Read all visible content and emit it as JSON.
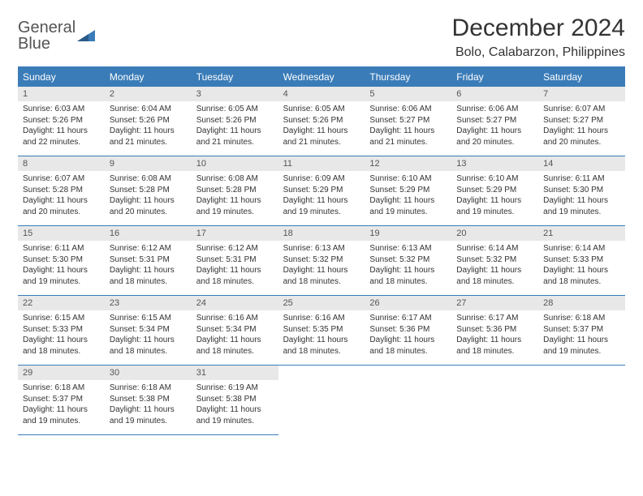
{
  "brand": {
    "line1": "General",
    "line2": "Blue"
  },
  "title": "December 2024",
  "location": "Bolo, Calabarzon, Philippines",
  "colors": {
    "header_bg": "#3a7cb8",
    "header_text": "#ffffff",
    "date_bg": "#e8e8e8",
    "border": "#3a7cb8",
    "text": "#333333"
  },
  "day_headers": [
    "Sunday",
    "Monday",
    "Tuesday",
    "Wednesday",
    "Thursday",
    "Friday",
    "Saturday"
  ],
  "weeks": [
    [
      {
        "d": "1",
        "sr": "Sunrise: 6:03 AM",
        "ss": "Sunset: 5:26 PM",
        "dl1": "Daylight: 11 hours",
        "dl2": "and 22 minutes."
      },
      {
        "d": "2",
        "sr": "Sunrise: 6:04 AM",
        "ss": "Sunset: 5:26 PM",
        "dl1": "Daylight: 11 hours",
        "dl2": "and 21 minutes."
      },
      {
        "d": "3",
        "sr": "Sunrise: 6:05 AM",
        "ss": "Sunset: 5:26 PM",
        "dl1": "Daylight: 11 hours",
        "dl2": "and 21 minutes."
      },
      {
        "d": "4",
        "sr": "Sunrise: 6:05 AM",
        "ss": "Sunset: 5:26 PM",
        "dl1": "Daylight: 11 hours",
        "dl2": "and 21 minutes."
      },
      {
        "d": "5",
        "sr": "Sunrise: 6:06 AM",
        "ss": "Sunset: 5:27 PM",
        "dl1": "Daylight: 11 hours",
        "dl2": "and 21 minutes."
      },
      {
        "d": "6",
        "sr": "Sunrise: 6:06 AM",
        "ss": "Sunset: 5:27 PM",
        "dl1": "Daylight: 11 hours",
        "dl2": "and 20 minutes."
      },
      {
        "d": "7",
        "sr": "Sunrise: 6:07 AM",
        "ss": "Sunset: 5:27 PM",
        "dl1": "Daylight: 11 hours",
        "dl2": "and 20 minutes."
      }
    ],
    [
      {
        "d": "8",
        "sr": "Sunrise: 6:07 AM",
        "ss": "Sunset: 5:28 PM",
        "dl1": "Daylight: 11 hours",
        "dl2": "and 20 minutes."
      },
      {
        "d": "9",
        "sr": "Sunrise: 6:08 AM",
        "ss": "Sunset: 5:28 PM",
        "dl1": "Daylight: 11 hours",
        "dl2": "and 20 minutes."
      },
      {
        "d": "10",
        "sr": "Sunrise: 6:08 AM",
        "ss": "Sunset: 5:28 PM",
        "dl1": "Daylight: 11 hours",
        "dl2": "and 19 minutes."
      },
      {
        "d": "11",
        "sr": "Sunrise: 6:09 AM",
        "ss": "Sunset: 5:29 PM",
        "dl1": "Daylight: 11 hours",
        "dl2": "and 19 minutes."
      },
      {
        "d": "12",
        "sr": "Sunrise: 6:10 AM",
        "ss": "Sunset: 5:29 PM",
        "dl1": "Daylight: 11 hours",
        "dl2": "and 19 minutes."
      },
      {
        "d": "13",
        "sr": "Sunrise: 6:10 AM",
        "ss": "Sunset: 5:29 PM",
        "dl1": "Daylight: 11 hours",
        "dl2": "and 19 minutes."
      },
      {
        "d": "14",
        "sr": "Sunrise: 6:11 AM",
        "ss": "Sunset: 5:30 PM",
        "dl1": "Daylight: 11 hours",
        "dl2": "and 19 minutes."
      }
    ],
    [
      {
        "d": "15",
        "sr": "Sunrise: 6:11 AM",
        "ss": "Sunset: 5:30 PM",
        "dl1": "Daylight: 11 hours",
        "dl2": "and 19 minutes."
      },
      {
        "d": "16",
        "sr": "Sunrise: 6:12 AM",
        "ss": "Sunset: 5:31 PM",
        "dl1": "Daylight: 11 hours",
        "dl2": "and 18 minutes."
      },
      {
        "d": "17",
        "sr": "Sunrise: 6:12 AM",
        "ss": "Sunset: 5:31 PM",
        "dl1": "Daylight: 11 hours",
        "dl2": "and 18 minutes."
      },
      {
        "d": "18",
        "sr": "Sunrise: 6:13 AM",
        "ss": "Sunset: 5:32 PM",
        "dl1": "Daylight: 11 hours",
        "dl2": "and 18 minutes."
      },
      {
        "d": "19",
        "sr": "Sunrise: 6:13 AM",
        "ss": "Sunset: 5:32 PM",
        "dl1": "Daylight: 11 hours",
        "dl2": "and 18 minutes."
      },
      {
        "d": "20",
        "sr": "Sunrise: 6:14 AM",
        "ss": "Sunset: 5:32 PM",
        "dl1": "Daylight: 11 hours",
        "dl2": "and 18 minutes."
      },
      {
        "d": "21",
        "sr": "Sunrise: 6:14 AM",
        "ss": "Sunset: 5:33 PM",
        "dl1": "Daylight: 11 hours",
        "dl2": "and 18 minutes."
      }
    ],
    [
      {
        "d": "22",
        "sr": "Sunrise: 6:15 AM",
        "ss": "Sunset: 5:33 PM",
        "dl1": "Daylight: 11 hours",
        "dl2": "and 18 minutes."
      },
      {
        "d": "23",
        "sr": "Sunrise: 6:15 AM",
        "ss": "Sunset: 5:34 PM",
        "dl1": "Daylight: 11 hours",
        "dl2": "and 18 minutes."
      },
      {
        "d": "24",
        "sr": "Sunrise: 6:16 AM",
        "ss": "Sunset: 5:34 PM",
        "dl1": "Daylight: 11 hours",
        "dl2": "and 18 minutes."
      },
      {
        "d": "25",
        "sr": "Sunrise: 6:16 AM",
        "ss": "Sunset: 5:35 PM",
        "dl1": "Daylight: 11 hours",
        "dl2": "and 18 minutes."
      },
      {
        "d": "26",
        "sr": "Sunrise: 6:17 AM",
        "ss": "Sunset: 5:36 PM",
        "dl1": "Daylight: 11 hours",
        "dl2": "and 18 minutes."
      },
      {
        "d": "27",
        "sr": "Sunrise: 6:17 AM",
        "ss": "Sunset: 5:36 PM",
        "dl1": "Daylight: 11 hours",
        "dl2": "and 18 minutes."
      },
      {
        "d": "28",
        "sr": "Sunrise: 6:18 AM",
        "ss": "Sunset: 5:37 PM",
        "dl1": "Daylight: 11 hours",
        "dl2": "and 19 minutes."
      }
    ],
    [
      {
        "d": "29",
        "sr": "Sunrise: 6:18 AM",
        "ss": "Sunset: 5:37 PM",
        "dl1": "Daylight: 11 hours",
        "dl2": "and 19 minutes."
      },
      {
        "d": "30",
        "sr": "Sunrise: 6:18 AM",
        "ss": "Sunset: 5:38 PM",
        "dl1": "Daylight: 11 hours",
        "dl2": "and 19 minutes."
      },
      {
        "d": "31",
        "sr": "Sunrise: 6:19 AM",
        "ss": "Sunset: 5:38 PM",
        "dl1": "Daylight: 11 hours",
        "dl2": "and 19 minutes."
      },
      null,
      null,
      null,
      null
    ]
  ]
}
